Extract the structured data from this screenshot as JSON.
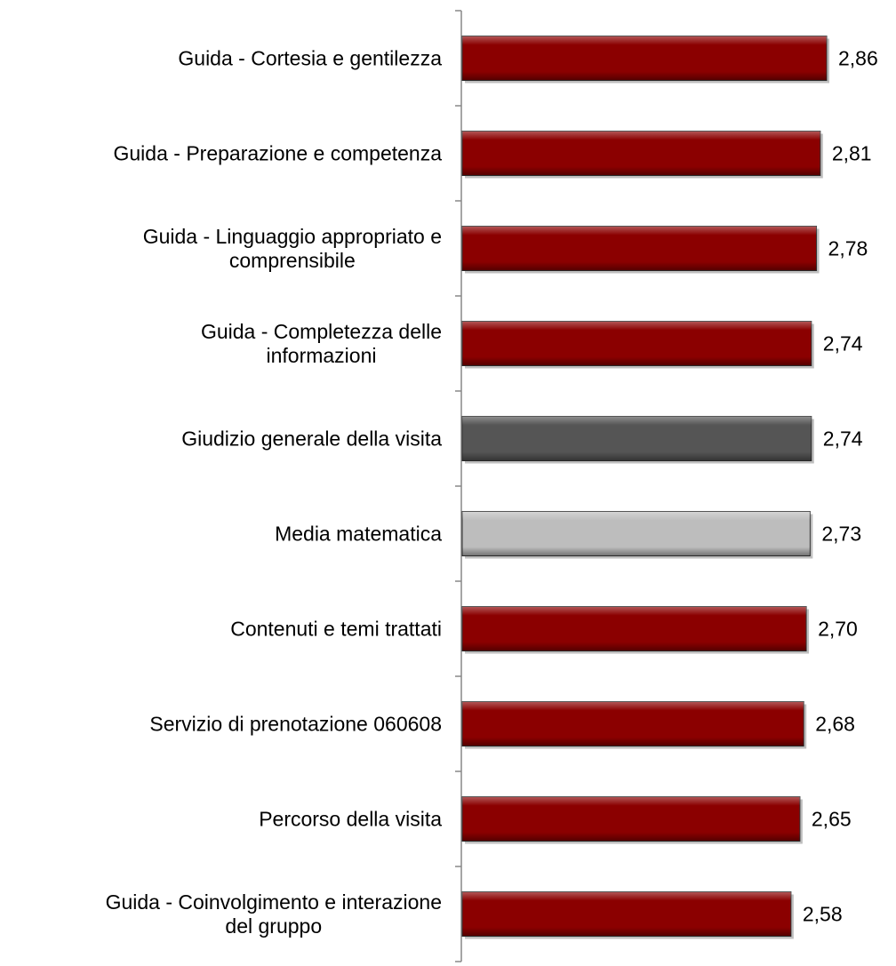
{
  "chart_data": {
    "type": "bar",
    "orientation": "horizontal",
    "categories": [
      "Guida - Cortesia e gentilezza",
      "Guida - Preparazione e competenza",
      "Guida - Linguaggio appropriato e\ncomprensibile",
      "Guida - Completezza delle\ninformazioni",
      "Giudizio generale della visita",
      "Media matematica",
      "Contenuti e temi trattati",
      "Servizio di prenotazione 060608",
      "Percorso della visita",
      "Guida - Coinvolgimento e interazione\ndel gruppo"
    ],
    "values": [
      2.86,
      2.81,
      2.78,
      2.74,
      2.74,
      2.73,
      2.7,
      2.68,
      2.65,
      2.58
    ],
    "value_labels": [
      "2,86",
      "2,81",
      "2,78",
      "2,74",
      "2,74",
      "2,73",
      "2,70",
      "2,68",
      "2,65",
      "2,58"
    ],
    "colors": [
      "#8b0000",
      "#8b0000",
      "#8b0000",
      "#8b0000",
      "#555555",
      "#bdbdbd",
      "#8b0000",
      "#8b0000",
      "#8b0000",
      "#8b0000"
    ]
  }
}
